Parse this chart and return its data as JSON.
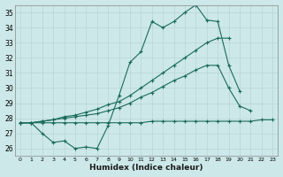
{
  "xlabel": "Humidex (Indice chaleur)",
  "background_color": "#cce8e8",
  "grid_color": "#b8d4d4",
  "line_color": "#1a6b5a",
  "xlim": [
    -0.5,
    23.5
  ],
  "ylim": [
    25.5,
    35.5
  ],
  "yticks": [
    26,
    27,
    28,
    29,
    30,
    31,
    32,
    33,
    34,
    35
  ],
  "xticks": [
    0,
    1,
    2,
    3,
    4,
    5,
    6,
    7,
    8,
    9,
    10,
    11,
    12,
    13,
    14,
    15,
    16,
    17,
    18,
    19,
    20,
    21,
    22,
    23
  ],
  "series": [
    {
      "x": [
        0,
        1,
        2,
        3,
        4,
        5,
        6,
        7,
        8,
        9,
        10,
        11,
        12,
        13,
        14,
        15,
        16,
        17,
        18,
        19,
        20
      ],
      "y": [
        27.7,
        27.7,
        27.0,
        26.4,
        26.5,
        26.0,
        26.1,
        26.0,
        27.5,
        29.5,
        31.7,
        32.4,
        34.4,
        34.0,
        34.4,
        35.0,
        35.5,
        34.5,
        34.4,
        31.5,
        29.8
      ]
    },
    {
      "x": [
        0,
        1,
        2,
        3,
        4,
        5,
        6,
        7,
        8,
        9,
        10,
        11,
        12,
        13,
        14,
        15,
        16,
        17,
        18,
        19,
        20,
        21,
        22,
        23
      ],
      "y": [
        27.7,
        27.7,
        27.8,
        27.9,
        28.1,
        28.2,
        28.4,
        28.6,
        28.9,
        29.1,
        29.5,
        30.0,
        30.5,
        31.0,
        31.5,
        32.0,
        32.5,
        33.0,
        33.3,
        33.3,
        null,
        null,
        null,
        null
      ]
    },
    {
      "x": [
        0,
        1,
        2,
        3,
        4,
        5,
        6,
        7,
        8,
        9,
        10,
        11,
        12,
        13,
        14,
        15,
        16,
        17,
        18,
        19,
        20,
        21,
        22,
        23
      ],
      "y": [
        27.7,
        27.7,
        27.8,
        27.9,
        28.0,
        28.1,
        28.2,
        28.3,
        28.5,
        28.7,
        29.0,
        29.4,
        29.7,
        30.1,
        30.5,
        30.8,
        31.2,
        31.5,
        31.5,
        30.0,
        28.8,
        28.5,
        null,
        null
      ]
    },
    {
      "x": [
        0,
        1,
        2,
        3,
        4,
        5,
        6,
        7,
        8,
        9,
        10,
        11,
        12,
        13,
        14,
        15,
        16,
        17,
        18,
        19,
        20,
        21,
        22,
        23
      ],
      "y": [
        27.7,
        27.7,
        27.7,
        27.7,
        27.7,
        27.7,
        27.7,
        27.7,
        27.7,
        27.7,
        27.7,
        27.7,
        27.8,
        27.8,
        27.8,
        27.8,
        27.8,
        27.8,
        27.8,
        27.8,
        27.8,
        27.8,
        27.9,
        27.9
      ]
    }
  ]
}
